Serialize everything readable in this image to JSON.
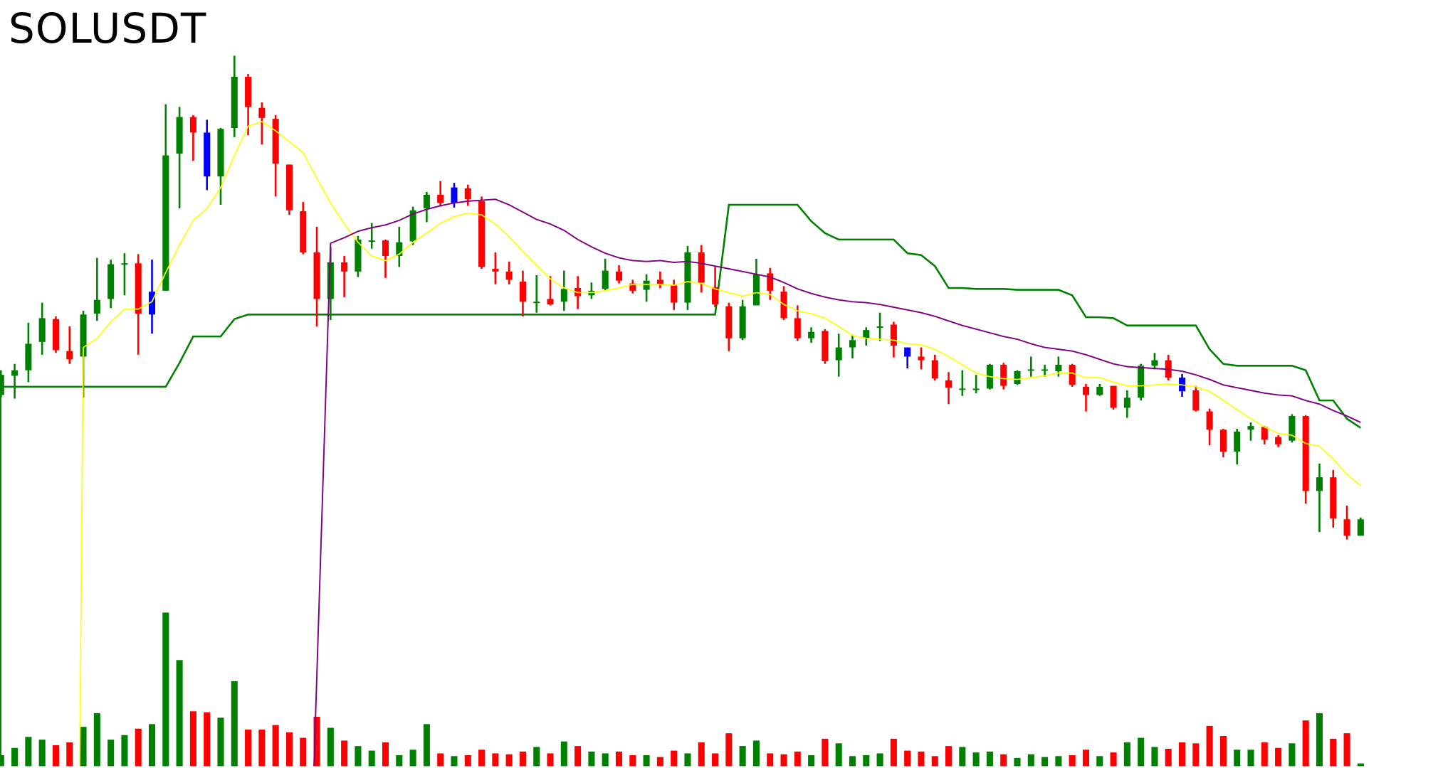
{
  "title": "SOLUSDT",
  "chart_data": {
    "type": "candlestick",
    "title": "SOLUSDT",
    "grid": false,
    "axes_visible": false,
    "colors": {
      "up": "#008000",
      "down": "#ff0000",
      "highlight": "#0000ff",
      "ma_fast": "#ffff00",
      "ma_slow": "#800080",
      "stop_line": "#008000"
    },
    "candles_ohlc": [
      [
        408,
        435,
        405,
        430
      ],
      [
        429,
        442,
        404,
        435
      ],
      [
        435,
        487,
        422,
        464
      ],
      [
        466,
        509,
        452,
        492
      ],
      [
        491,
        494,
        454,
        457
      ],
      [
        456,
        483,
        442,
        447
      ],
      [
        450,
        500,
        405,
        496
      ],
      [
        497,
        558,
        489,
        512
      ],
      [
        513,
        556,
        503,
        551
      ],
      [
        552,
        563,
        517,
        552
      ],
      [
        552,
        562,
        452,
        497
      ],
      [
        496,
        556,
        475,
        521
      ],
      [
        522,
        726,
        522,
        670
      ],
      [
        672,
        723,
        612,
        712
      ],
      [
        712,
        714,
        664,
        695
      ],
      [
        695,
        709,
        632,
        647
      ],
      [
        647,
        700,
        616,
        699
      ],
      [
        700,
        779,
        690,
        756
      ],
      [
        756,
        759,
        692,
        723
      ],
      [
        722,
        728,
        682,
        711
      ],
      [
        710,
        714,
        625,
        661
      ],
      [
        660,
        660,
        605,
        610
      ],
      [
        609,
        619,
        562,
        564
      ],
      [
        564,
        592,
        483,
        513
      ],
      [
        513,
        570,
        490,
        553
      ],
      [
        553,
        560,
        515,
        543
      ],
      [
        543,
        582,
        537,
        578
      ],
      [
        577,
        596,
        568,
        577
      ],
      [
        577,
        578,
        536,
        560
      ],
      [
        560,
        592,
        548,
        575
      ],
      [
        576,
        614,
        572,
        610
      ],
      [
        612,
        630,
        597,
        627
      ],
      [
        627,
        642,
        614,
        618
      ],
      [
        618,
        640,
        613,
        635
      ],
      [
        634,
        638,
        615,
        622
      ],
      [
        620,
        625,
        546,
        548
      ],
      [
        546,
        564,
        529,
        543
      ],
      [
        543,
        554,
        529,
        534
      ],
      [
        532,
        544,
        494,
        510
      ],
      [
        510,
        539,
        498,
        510
      ],
      [
        513,
        538,
        506,
        507
      ],
      [
        510,
        544,
        500,
        524
      ],
      [
        525,
        538,
        502,
        516
      ],
      [
        517,
        531,
        513,
        522
      ],
      [
        524,
        557,
        522,
        544
      ],
      [
        543,
        550,
        530,
        533
      ],
      [
        530,
        534,
        519,
        522
      ],
      [
        523,
        540,
        510,
        533
      ],
      [
        534,
        543,
        525,
        529
      ],
      [
        528,
        534,
        501,
        509
      ],
      [
        509,
        571,
        501,
        564
      ],
      [
        564,
        572,
        520,
        531
      ],
      [
        526,
        548,
        504,
        507
      ],
      [
        505,
        509,
        456,
        470
      ],
      [
        470,
        512,
        468,
        505
      ],
      [
        506,
        557,
        506,
        540
      ],
      [
        541,
        547,
        512,
        522
      ],
      [
        521,
        527,
        490,
        492
      ],
      [
        492,
        506,
        467,
        470
      ],
      [
        470,
        482,
        465,
        477
      ],
      [
        478,
        480,
        442,
        445
      ],
      [
        446,
        475,
        428,
        460
      ],
      [
        460,
        474,
        448,
        468
      ],
      [
        470,
        482,
        462,
        479
      ],
      [
        483,
        498,
        467,
        483
      ],
      [
        485,
        488,
        449,
        462
      ],
      [
        460,
        460,
        437,
        450
      ],
      [
        450,
        460,
        436,
        446
      ],
      [
        446,
        452,
        424,
        426
      ],
      [
        424,
        433,
        398,
        416
      ],
      [
        415,
        435,
        407,
        415
      ],
      [
        415,
        430,
        410,
        415
      ],
      [
        415,
        442,
        414,
        441
      ],
      [
        441,
        443,
        414,
        418
      ],
      [
        420,
        435,
        419,
        434
      ],
      [
        436,
        450,
        428,
        436
      ],
      [
        436,
        441,
        428,
        436
      ],
      [
        434,
        450,
        428,
        441
      ],
      [
        441,
        442,
        417,
        419
      ],
      [
        417,
        420,
        390,
        408
      ],
      [
        408,
        420,
        407,
        417
      ],
      [
        418,
        418,
        392,
        394
      ],
      [
        394,
        413,
        383,
        405
      ],
      [
        405,
        442,
        402,
        440
      ],
      [
        440,
        454,
        436,
        446
      ],
      [
        446,
        452,
        424,
        427
      ],
      [
        427,
        431,
        406,
        412
      ],
      [
        413,
        418,
        390,
        391
      ],
      [
        390,
        393,
        353,
        370
      ],
      [
        370,
        371,
        340,
        346
      ],
      [
        346,
        371,
        332,
        368
      ],
      [
        370,
        378,
        358,
        374
      ],
      [
        373,
        374,
        354,
        359
      ],
      [
        362,
        364,
        351,
        354
      ],
      [
        358,
        387,
        356,
        385
      ],
      [
        385,
        386,
        289,
        303
      ],
      [
        303,
        333,
        258,
        318
      ],
      [
        318,
        326,
        263,
        273
      ],
      [
        272,
        287,
        250,
        254
      ],
      [
        254,
        274,
        254,
        272
      ]
    ],
    "highlighted_candles": [
      11,
      15,
      33,
      66,
      86
    ],
    "volume": [
      12,
      20,
      32,
      29,
      23,
      26,
      43,
      58,
      29,
      34,
      41,
      46,
      168,
      116,
      60,
      59,
      53,
      93,
      40,
      40,
      45,
      37,
      31,
      54,
      42,
      28,
      22,
      17,
      26,
      12,
      18,
      46,
      14,
      11,
      12,
      18,
      14,
      13,
      16,
      21,
      14,
      27,
      22,
      16,
      14,
      16,
      12,
      12,
      10,
      17,
      14,
      26,
      14,
      36,
      22,
      28,
      14,
      13,
      16,
      12,
      30,
      25,
      11,
      12,
      14,
      30,
      17,
      16,
      11,
      22,
      21,
      15,
      16,
      13,
      9,
      13,
      10,
      11,
      12,
      18,
      11,
      15,
      26,
      31,
      21,
      19,
      26,
      25,
      44,
      33,
      18,
      18,
      26,
      20,
      25,
      50,
      58,
      30,
      36,
      3
    ],
    "ma_fast": {
      "start_index": 6,
      "values": [
        460,
        470,
        488,
        502,
        502,
        510,
        542,
        572,
        599,
        612,
        635,
        670,
        702,
        707,
        697,
        685,
        673,
        645,
        618,
        595,
        575,
        560,
        555,
        562,
        575,
        585,
        596,
        603,
        607,
        605,
        595,
        581,
        565,
        550,
        535,
        525,
        520,
        520,
        522,
        525,
        529,
        529,
        529,
        528,
        532,
        530,
        524,
        520,
        516,
        520,
        518,
        507,
        500,
        497,
        492,
        483,
        473,
        470,
        469,
        468,
        464,
        463,
        458,
        450,
        441,
        432,
        428,
        426,
        425,
        427,
        429,
        432,
        432,
        427,
        427,
        422,
        418,
        418,
        419,
        420,
        419,
        417,
        412,
        402,
        392,
        382,
        373,
        366,
        364,
        355,
        352,
        338,
        321,
        309
      ]
    },
    "ma_slow": {
      "start_index": 24,
      "values": [
        574,
        580,
        587,
        591,
        594,
        599,
        606,
        611,
        615,
        618,
        620,
        621,
        622,
        616,
        608,
        600,
        595,
        588,
        578,
        570,
        563,
        558,
        555,
        554,
        555,
        553,
        554,
        552,
        549,
        546,
        543,
        540,
        537,
        531,
        524,
        519,
        515,
        512,
        510,
        509,
        507,
        504,
        501,
        498,
        494,
        489,
        484,
        480,
        476,
        472,
        469,
        464,
        460,
        458,
        456,
        452,
        447,
        442,
        439,
        438,
        437,
        436,
        434,
        430,
        425,
        419,
        416,
        413,
        410,
        408,
        407,
        402,
        398,
        391,
        385,
        378
      ]
    },
    "stop_line": [
      417,
      417,
      417,
      417,
      417,
      417,
      417,
      417,
      417,
      417,
      417,
      417,
      417,
      443,
      472,
      472,
      472,
      491,
      496,
      496,
      496,
      496,
      496,
      496,
      496,
      496,
      496,
      496,
      496,
      496,
      496,
      496,
      496,
      496,
      496,
      496,
      496,
      496,
      496,
      496,
      496,
      496,
      496,
      496,
      496,
      496,
      496,
      496,
      496,
      496,
      496,
      496,
      496,
      616,
      616,
      616,
      616,
      616,
      616,
      598,
      585,
      578,
      578,
      578,
      578,
      578,
      563,
      561,
      549,
      525,
      525,
      524,
      524,
      524,
      523,
      523,
      523,
      523,
      517,
      493,
      493,
      492,
      484,
      484,
      484,
      484,
      484,
      484,
      458,
      442,
      440,
      440,
      440,
      440,
      440,
      435,
      402,
      402,
      382,
      372
    ]
  }
}
